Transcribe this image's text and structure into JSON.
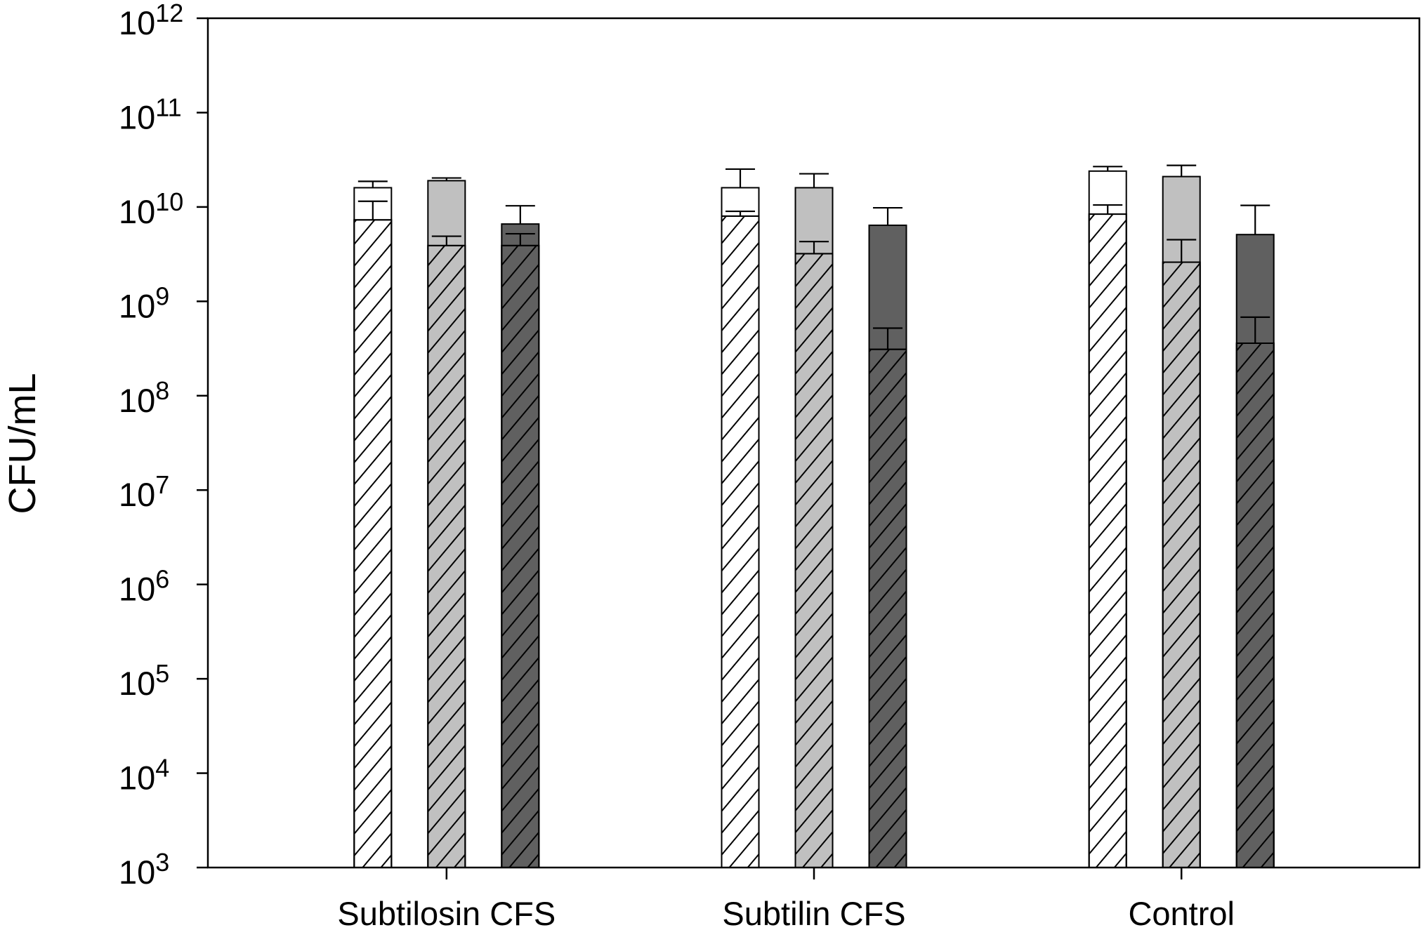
{
  "chart_data": {
    "type": "bar",
    "ylabel": "CFU/mL",
    "yscale": "log",
    "ylim": [
      1000.0,
      1000000000000.0
    ],
    "grid": false,
    "yticks": [
      {
        "base": "10",
        "exp": "3"
      },
      {
        "base": "10",
        "exp": "4"
      },
      {
        "base": "10",
        "exp": "5"
      },
      {
        "base": "10",
        "exp": "6"
      },
      {
        "base": "10",
        "exp": "7"
      },
      {
        "base": "10",
        "exp": "8"
      },
      {
        "base": "10",
        "exp": "9"
      },
      {
        "base": "10",
        "exp": "10"
      },
      {
        "base": "10",
        "exp": "11"
      },
      {
        "base": "10",
        "exp": "12"
      }
    ],
    "categories": [
      "Subtilosin CFS",
      "Subtilin CFS",
      "Control"
    ],
    "series": [
      {
        "fill": "#FFFFFF",
        "pattern": "none",
        "values": [
          16000000000.0,
          16000000000.0,
          24000000000.0
        ],
        "errors": [
          2700000000.0,
          9200000000.0,
          2800000000.0
        ]
      },
      {
        "fill": "#FFFFFF",
        "pattern": "diagonal-hatch",
        "values": [
          7300000000.0,
          8000000000.0,
          8400000000.0
        ],
        "errors": [
          4200000000.0,
          1000000000.0,
          2100000000.0
        ]
      },
      {
        "fill": "#C0C0C0",
        "pattern": "none",
        "values": [
          19000000000.0,
          16000000000.0,
          21000000000.0
        ],
        "errors": [
          1300000000.0,
          6500000000.0,
          6600000000.0
        ]
      },
      {
        "fill": "#C0C0C0",
        "pattern": "diagonal-hatch",
        "values": [
          3900000000.0,
          3200000000.0,
          2600000000.0
        ],
        "errors": [
          1000000000.0,
          1100000000.0,
          1900000000.0
        ]
      },
      {
        "fill": "#606060",
        "pattern": "none",
        "values": [
          6600000000.0,
          6400000000.0,
          5100000000.0
        ],
        "errors": [
          3700000000.0,
          3400000000.0,
          5300000000.0
        ]
      },
      {
        "fill": "#606060",
        "pattern": "diagonal-hatch",
        "values": [
          3900000000.0,
          310000000.0,
          360000000.0
        ],
        "errors": [
          1300000000.0,
          210000000.0,
          320000000.0
        ]
      }
    ]
  }
}
